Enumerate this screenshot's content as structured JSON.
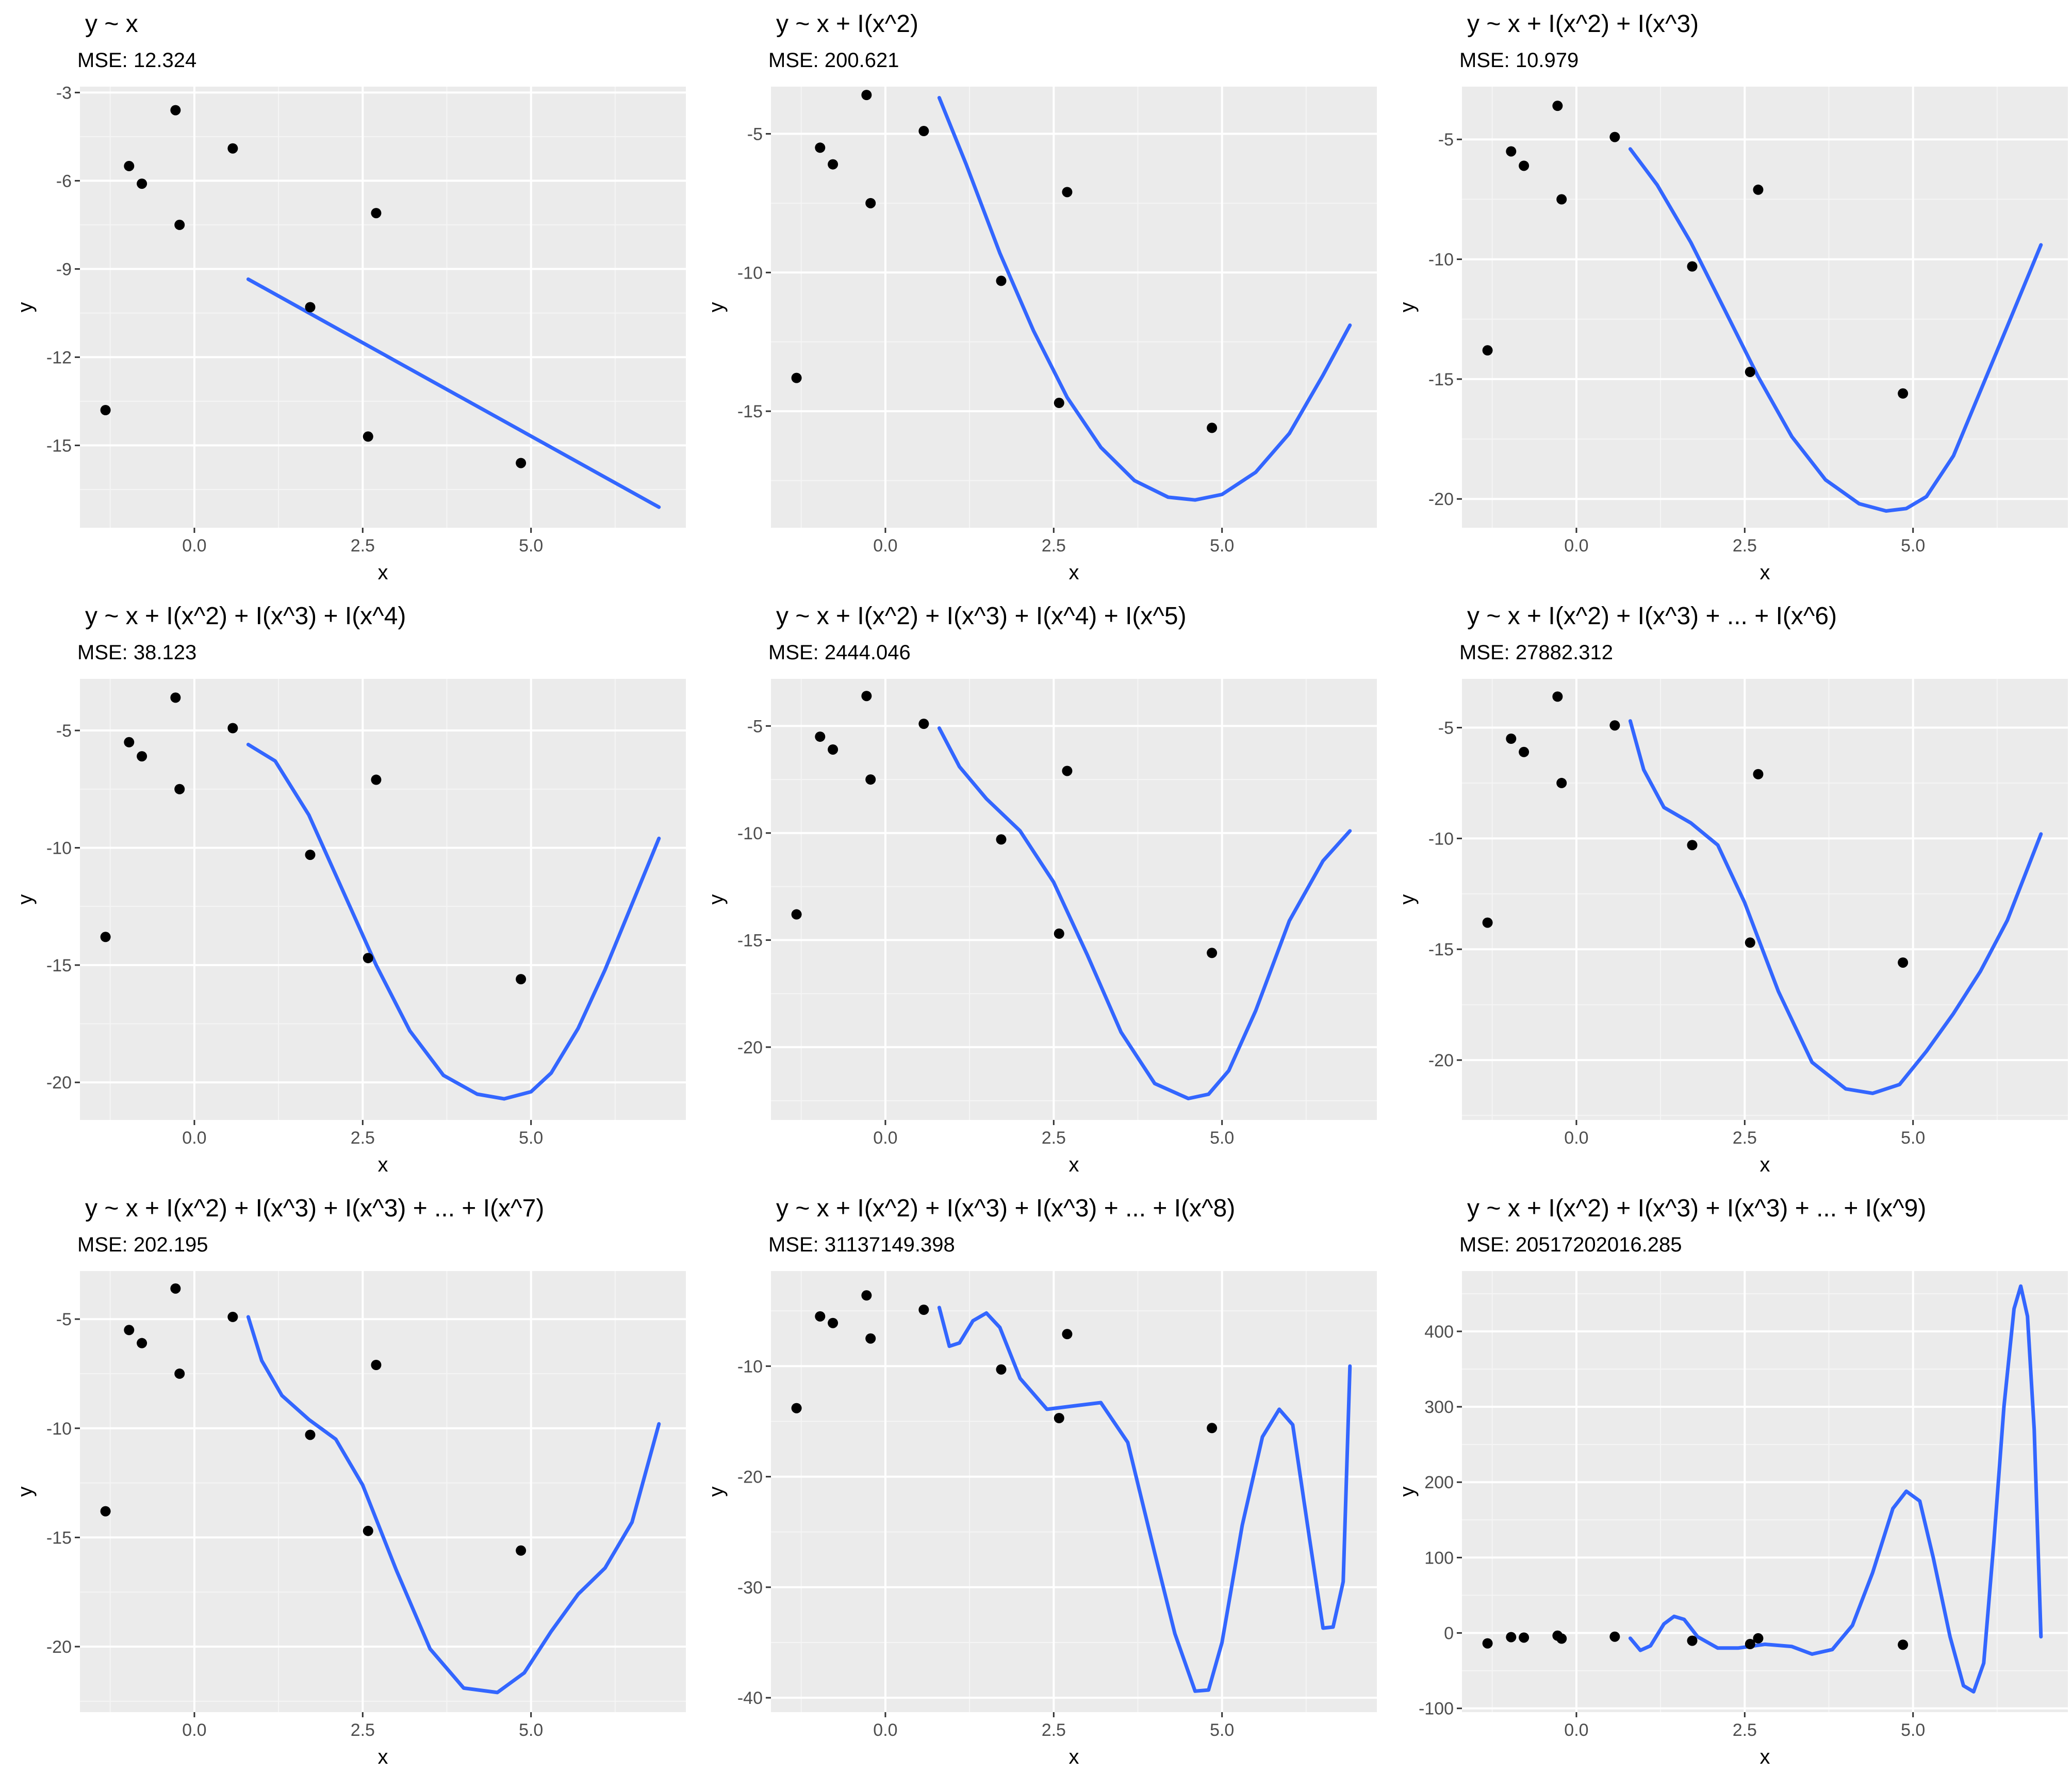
{
  "chart_data": [
    {
      "type": "scatter",
      "title": "y ~ x",
      "subtitle": "MSE: 12.324",
      "xlabel": "x",
      "ylabel": "y",
      "xlim": [
        -1.7,
        7.3
      ],
      "ylim": [
        -17.8,
        -2.8
      ],
      "xticks": [
        0.0,
        2.5,
        5.0
      ],
      "xtick_labels": [
        "0.0",
        "2.5",
        "5.0"
      ],
      "yticks": [
        -15,
        -12,
        -9,
        -6,
        -3
      ],
      "ytick_labels": [
        "-15",
        "-12",
        "-9",
        "-6",
        "-3"
      ],
      "grid": true,
      "series": [
        {
          "type": "scatter",
          "x": [
            -1.32,
            -0.97,
            -0.78,
            -0.28,
            -0.22,
            0.57,
            1.72,
            2.58,
            2.7,
            4.85
          ],
          "y": [
            -13.8,
            -5.5,
            -6.1,
            -3.6,
            -7.5,
            -4.9,
            -10.3,
            -14.7,
            -7.1,
            -15.6
          ]
        },
        {
          "type": "line",
          "x": [
            0.8,
            6.9
          ],
          "y": [
            -9.35,
            -17.1
          ]
        }
      ]
    },
    {
      "type": "scatter",
      "title": "y ~ x + I(x^2)",
      "subtitle": "MSE: 200.621",
      "xlabel": "x",
      "ylabel": "y",
      "xlim": [
        -1.7,
        7.3
      ],
      "ylim": [
        -19.2,
        -3.3
      ],
      "xticks": [
        0.0,
        2.5,
        5.0
      ],
      "xtick_labels": [
        "0.0",
        "2.5",
        "5.0"
      ],
      "yticks": [
        -15,
        -10,
        -5
      ],
      "ytick_labels": [
        "-15",
        "-10",
        "-5"
      ],
      "grid": true,
      "series": [
        {
          "type": "scatter",
          "x": [
            -1.32,
            -0.97,
            -0.78,
            -0.28,
            -0.22,
            0.57,
            1.72,
            2.58,
            2.7,
            4.85
          ],
          "y": [
            -13.8,
            -5.5,
            -6.1,
            -3.6,
            -7.5,
            -4.9,
            -10.3,
            -14.7,
            -7.1,
            -15.6
          ]
        },
        {
          "type": "line",
          "x": [
            0.8,
            1.2,
            1.7,
            2.2,
            2.7,
            3.2,
            3.7,
            4.2,
            4.6,
            5.0,
            5.5,
            6.0,
            6.5,
            6.9
          ],
          "y": [
            -3.7,
            -6.1,
            -9.3,
            -12.1,
            -14.5,
            -16.3,
            -17.5,
            -18.1,
            -18.2,
            -18.0,
            -17.2,
            -15.8,
            -13.7,
            -11.9
          ]
        }
      ]
    },
    {
      "type": "scatter",
      "title": "y ~ x + I(x^2) + I(x^3)",
      "subtitle": "MSE: 10.979",
      "xlabel": "x",
      "ylabel": "y",
      "xlim": [
        -1.7,
        7.3
      ],
      "ylim": [
        -21.2,
        -2.8
      ],
      "xticks": [
        0.0,
        2.5,
        5.0
      ],
      "xtick_labels": [
        "0.0",
        "2.5",
        "5.0"
      ],
      "yticks": [
        -20,
        -15,
        -10,
        -5
      ],
      "ytick_labels": [
        "-20",
        "-15",
        "-10",
        "-5"
      ],
      "grid": true,
      "series": [
        {
          "type": "scatter",
          "x": [
            -1.32,
            -0.97,
            -0.78,
            -0.28,
            -0.22,
            0.57,
            1.72,
            2.58,
            2.7,
            4.85
          ],
          "y": [
            -13.8,
            -5.5,
            -6.1,
            -3.6,
            -7.5,
            -4.9,
            -10.3,
            -14.7,
            -7.1,
            -15.6
          ]
        },
        {
          "type": "line",
          "x": [
            0.8,
            1.2,
            1.7,
            2.2,
            2.7,
            3.2,
            3.7,
            4.2,
            4.6,
            4.9,
            5.2,
            5.6,
            6.0,
            6.4,
            6.9
          ],
          "y": [
            -5.4,
            -6.9,
            -9.3,
            -12.1,
            -14.9,
            -17.4,
            -19.2,
            -20.2,
            -20.5,
            -20.4,
            -19.9,
            -18.2,
            -15.5,
            -12.8,
            -9.4
          ]
        }
      ]
    },
    {
      "type": "scatter",
      "title": "y ~ x + I(x^2) + I(x^3) + I(x^4)",
      "subtitle": "MSE: 38.123",
      "xlabel": "x",
      "ylabel": "y",
      "xlim": [
        -1.7,
        7.3
      ],
      "ylim": [
        -21.6,
        -2.8
      ],
      "xticks": [
        0.0,
        2.5,
        5.0
      ],
      "xtick_labels": [
        "0.0",
        "2.5",
        "5.0"
      ],
      "yticks": [
        -20,
        -15,
        -10,
        -5
      ],
      "ytick_labels": [
        "-20",
        "-15",
        "-10",
        "-5"
      ],
      "grid": true,
      "series": [
        {
          "type": "scatter",
          "x": [
            -1.32,
            -0.97,
            -0.78,
            -0.28,
            -0.22,
            0.57,
            1.72,
            2.58,
            2.7,
            4.85
          ],
          "y": [
            -13.8,
            -5.5,
            -6.1,
            -3.6,
            -7.5,
            -4.9,
            -10.3,
            -14.7,
            -7.1,
            -15.6
          ]
        },
        {
          "type": "line",
          "x": [
            0.8,
            1.2,
            1.7,
            2.2,
            2.7,
            3.2,
            3.7,
            4.2,
            4.6,
            5.0,
            5.3,
            5.7,
            6.1,
            6.5,
            6.9
          ],
          "y": [
            -5.6,
            -6.3,
            -8.6,
            -11.8,
            -15.0,
            -17.8,
            -19.7,
            -20.5,
            -20.7,
            -20.4,
            -19.6,
            -17.7,
            -15.2,
            -12.4,
            -9.6
          ]
        }
      ]
    },
    {
      "type": "scatter",
      "title": "y ~ x + I(x^2) + I(x^3) + I(x^4) + I(x^5)",
      "subtitle": "MSE: 2444.046",
      "xlabel": "x",
      "ylabel": "y",
      "xlim": [
        -1.7,
        7.3
      ],
      "ylim": [
        -23.4,
        -2.8
      ],
      "xticks": [
        0.0,
        2.5,
        5.0
      ],
      "xtick_labels": [
        "0.0",
        "2.5",
        "5.0"
      ],
      "yticks": [
        -20,
        -15,
        -10,
        -5
      ],
      "ytick_labels": [
        "-20",
        "-15",
        "-10",
        "-5"
      ],
      "grid": true,
      "series": [
        {
          "type": "scatter",
          "x": [
            -1.32,
            -0.97,
            -0.78,
            -0.28,
            -0.22,
            0.57,
            1.72,
            2.58,
            2.7,
            4.85
          ],
          "y": [
            -13.8,
            -5.5,
            -6.1,
            -3.6,
            -7.5,
            -4.9,
            -10.3,
            -14.7,
            -7.1,
            -15.6
          ]
        },
        {
          "type": "line",
          "x": [
            0.8,
            1.1,
            1.5,
            2.0,
            2.5,
            3.0,
            3.5,
            4.0,
            4.5,
            4.8,
            5.1,
            5.5,
            6.0,
            6.5,
            6.9
          ],
          "y": [
            -5.1,
            -6.9,
            -8.4,
            -9.9,
            -12.3,
            -15.7,
            -19.3,
            -21.7,
            -22.4,
            -22.2,
            -21.1,
            -18.3,
            -14.1,
            -11.3,
            -9.9
          ]
        }
      ]
    },
    {
      "type": "scatter",
      "title": "y ~ x + I(x^2) + I(x^3) + ... + I(x^6)",
      "subtitle": "MSE: 27882.312",
      "xlabel": "x",
      "ylabel": "y",
      "xlim": [
        -1.7,
        7.3
      ],
      "ylim": [
        -22.7,
        -2.8
      ],
      "xticks": [
        0.0,
        2.5,
        5.0
      ],
      "xtick_labels": [
        "0.0",
        "2.5",
        "5.0"
      ],
      "yticks": [
        -20,
        -15,
        -10,
        -5
      ],
      "ytick_labels": [
        "-20",
        "-15",
        "-10",
        "-5"
      ],
      "grid": true,
      "series": [
        {
          "type": "scatter",
          "x": [
            -1.32,
            -0.97,
            -0.78,
            -0.28,
            -0.22,
            0.57,
            1.72,
            2.58,
            2.7,
            4.85
          ],
          "y": [
            -13.8,
            -5.5,
            -6.1,
            -3.6,
            -7.5,
            -4.9,
            -10.3,
            -14.7,
            -7.1,
            -15.6
          ]
        },
        {
          "type": "line",
          "x": [
            0.8,
            1.0,
            1.3,
            1.7,
            2.1,
            2.5,
            3.0,
            3.5,
            4.0,
            4.4,
            4.8,
            5.2,
            5.6,
            6.0,
            6.4,
            6.9
          ],
          "y": [
            -4.7,
            -6.9,
            -8.6,
            -9.3,
            -10.3,
            -12.9,
            -16.9,
            -20.1,
            -21.3,
            -21.5,
            -21.1,
            -19.6,
            -17.9,
            -16.0,
            -13.7,
            -9.8
          ]
        }
      ]
    },
    {
      "type": "scatter",
      "title": "y ~ x + I(x^2) + I(x^3) + I(x^3) + ... + I(x^7)",
      "subtitle": "MSE: 202.195",
      "xlabel": "x",
      "ylabel": "y",
      "xlim": [
        -1.7,
        7.3
      ],
      "ylim": [
        -23.0,
        -2.8
      ],
      "xticks": [
        0.0,
        2.5,
        5.0
      ],
      "xtick_labels": [
        "0.0",
        "2.5",
        "5.0"
      ],
      "yticks": [
        -20,
        -15,
        -10,
        -5
      ],
      "ytick_labels": [
        "-20",
        "-15",
        "-10",
        "-5"
      ],
      "grid": true,
      "series": [
        {
          "type": "scatter",
          "x": [
            -1.32,
            -0.97,
            -0.78,
            -0.28,
            -0.22,
            0.57,
            1.72,
            2.58,
            2.7,
            4.85
          ],
          "y": [
            -13.8,
            -5.5,
            -6.1,
            -3.6,
            -7.5,
            -4.9,
            -10.3,
            -14.7,
            -7.1,
            -15.6
          ]
        },
        {
          "type": "line",
          "x": [
            0.8,
            1.0,
            1.3,
            1.7,
            2.1,
            2.5,
            3.0,
            3.5,
            4.0,
            4.5,
            4.9,
            5.3,
            5.7,
            6.1,
            6.5,
            6.9
          ],
          "y": [
            -4.9,
            -6.9,
            -8.5,
            -9.6,
            -10.5,
            -12.6,
            -16.5,
            -20.1,
            -21.9,
            -22.1,
            -21.2,
            -19.3,
            -17.6,
            -16.4,
            -14.3,
            -9.8
          ]
        }
      ]
    },
    {
      "type": "scatter",
      "title": "y ~ x + I(x^2) + I(x^3) + I(x^3) + ... + I(x^8)",
      "subtitle": "MSE: 31137149.398",
      "xlabel": "x",
      "ylabel": "y",
      "xlim": [
        -1.7,
        7.3
      ],
      "ylim": [
        -41.3,
        -1.4
      ],
      "xticks": [
        0.0,
        2.5,
        5.0
      ],
      "xtick_labels": [
        "0.0",
        "2.5",
        "5.0"
      ],
      "yticks": [
        -40,
        -30,
        -20,
        -10
      ],
      "ytick_labels": [
        "-40",
        "-30",
        "-20",
        "-10"
      ],
      "grid": true,
      "series": [
        {
          "type": "scatter",
          "x": [
            -1.32,
            -0.97,
            -0.78,
            -0.28,
            -0.22,
            0.57,
            1.72,
            2.58,
            2.7,
            4.85
          ],
          "y": [
            -13.8,
            -5.5,
            -6.1,
            -3.6,
            -7.5,
            -4.9,
            -10.3,
            -14.7,
            -7.1,
            -15.6
          ]
        },
        {
          "type": "line",
          "x": [
            0.8,
            0.95,
            1.1,
            1.3,
            1.5,
            1.7,
            2.0,
            2.4,
            2.8,
            3.2,
            3.6,
            4.0,
            4.3,
            4.6,
            4.8,
            5.0,
            5.3,
            5.6,
            5.85,
            6.05,
            6.3,
            6.5,
            6.65,
            6.8,
            6.9
          ],
          "y": [
            -4.7,
            -8.2,
            -7.9,
            -5.9,
            -5.2,
            -6.5,
            -11.1,
            -13.9,
            -13.6,
            -13.3,
            -16.9,
            -26.9,
            -34.2,
            -39.4,
            -39.3,
            -35.0,
            -24.4,
            -16.4,
            -13.9,
            -15.3,
            -25.6,
            -33.7,
            -33.6,
            -29.5,
            -10.0
          ]
        }
      ]
    },
    {
      "type": "scatter",
      "title": "y ~ x + I(x^2) + I(x^3) + I(x^3) + ... + I(x^9)",
      "subtitle": "MSE: 20517202016.285",
      "xlabel": "x",
      "ylabel": "y",
      "xlim": [
        -1.7,
        7.3
      ],
      "ylim": [
        -105,
        480
      ],
      "xticks": [
        0.0,
        2.5,
        5.0
      ],
      "xtick_labels": [
        "0.0",
        "2.5",
        "5.0"
      ],
      "yticks": [
        -100,
        0,
        100,
        200,
        300,
        400
      ],
      "ytick_labels": [
        "-100",
        "0",
        "100",
        "200",
        "300",
        "400"
      ],
      "grid": true,
      "series": [
        {
          "type": "scatter",
          "x": [
            -1.32,
            -0.97,
            -0.78,
            -0.28,
            -0.22,
            0.57,
            1.72,
            2.58,
            2.7,
            4.85
          ],
          "y": [
            -13.8,
            -5.5,
            -6.1,
            -3.6,
            -7.5,
            -4.9,
            -10.3,
            -14.7,
            -7.1,
            -15.6
          ]
        },
        {
          "type": "line",
          "x": [
            0.8,
            0.95,
            1.1,
            1.3,
            1.45,
            1.6,
            1.8,
            2.1,
            2.4,
            2.8,
            3.2,
            3.5,
            3.8,
            4.1,
            4.4,
            4.7,
            4.9,
            5.1,
            5.3,
            5.55,
            5.75,
            5.9,
            6.05,
            6.2,
            6.35,
            6.5,
            6.6,
            6.7,
            6.8,
            6.9
          ],
          "y": [
            -7,
            -23,
            -17,
            12,
            22,
            18,
            -5,
            -20,
            -20,
            -15,
            -18,
            -28,
            -22,
            10,
            80,
            165,
            188,
            175,
            100,
            -5,
            -70,
            -78,
            -40,
            120,
            300,
            430,
            460,
            420,
            270,
            -5
          ]
        }
      ]
    }
  ]
}
